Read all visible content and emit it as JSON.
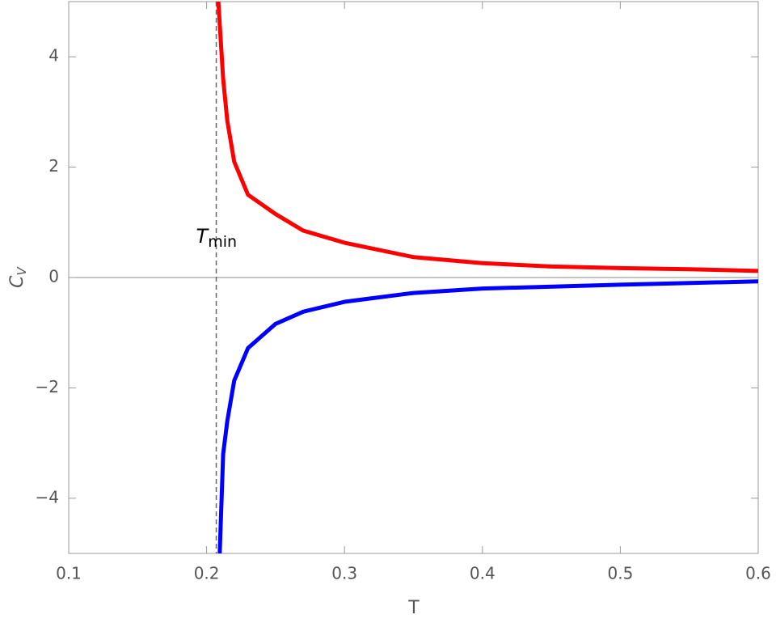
{
  "chart_data": {
    "type": "line",
    "xlabel": "T",
    "ylabel": "C",
    "ylabel_sub": "V",
    "annotation": "T",
    "annotation_sub": "min",
    "vlines": [
      0.207
    ],
    "xlim": [
      0.1,
      0.6
    ],
    "ylim": [
      -5,
      5
    ],
    "xticks": [
      0.1,
      0.2,
      0.3,
      0.4,
      0.5,
      0.6
    ],
    "yticks": [
      {
        "value": -4,
        "label": "−4"
      },
      {
        "value": -2,
        "label": "−2"
      },
      0,
      2,
      4
    ],
    "series": [
      {
        "color": "#ff0000",
        "x": [
          0.2085,
          0.212,
          0.215,
          0.22,
          0.23,
          0.25,
          0.27,
          0.3,
          0.35,
          0.4,
          0.45,
          0.5,
          0.55,
          0.6
        ],
        "values": [
          5,
          3.6,
          2.84,
          2.1,
          1.5,
          1.15,
          0.85,
          0.63,
          0.37,
          0.26,
          0.2,
          0.17,
          0.15,
          0.12
        ]
      },
      {
        "color": "#0000ff",
        "x": [
          0.2095,
          0.212,
          0.215,
          0.22,
          0.23,
          0.25,
          0.27,
          0.3,
          0.35,
          0.4,
          0.5,
          0.6
        ],
        "values": [
          -5,
          -3.2,
          -2.6,
          -1.87,
          -1.28,
          -0.84,
          -0.62,
          -0.44,
          -0.28,
          -0.2,
          -0.13,
          -0.07
        ]
      }
    ]
  }
}
